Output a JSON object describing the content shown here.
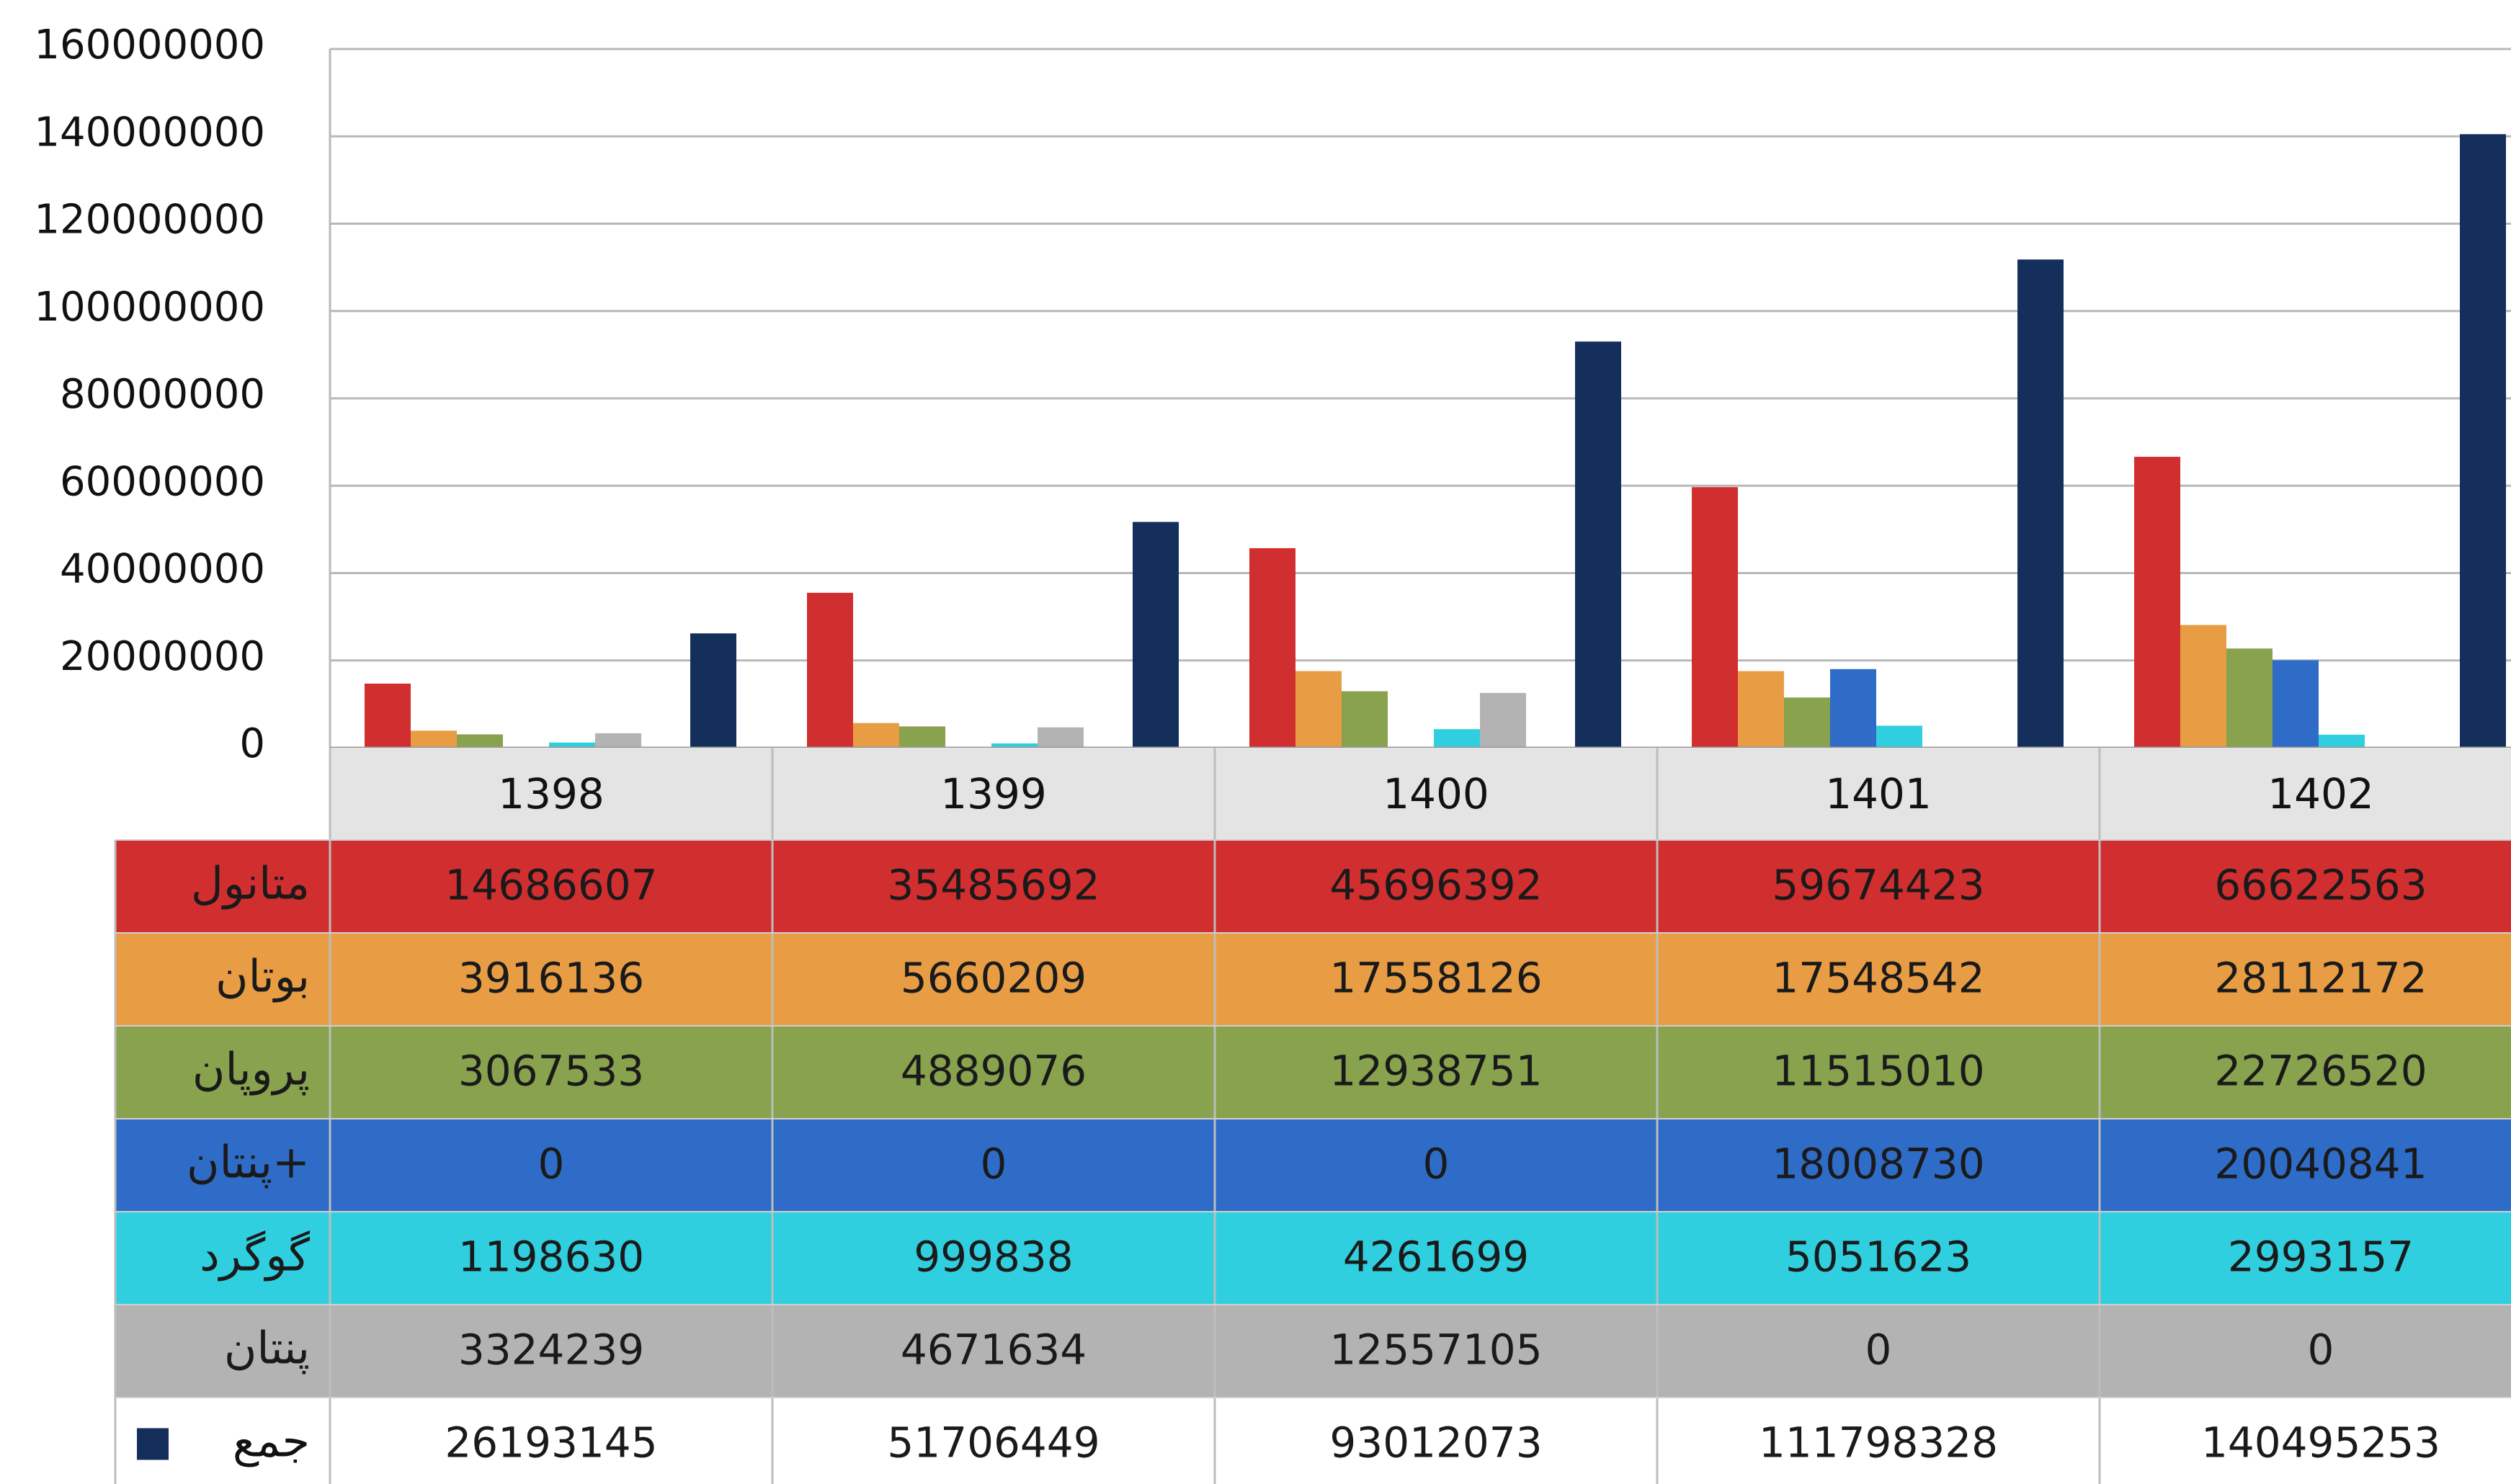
{
  "chart_data": {
    "type": "bar",
    "categories": [
      "1398",
      "1399",
      "1400",
      "1401",
      "1402"
    ],
    "ylim": [
      0,
      160000000
    ],
    "yticks": [
      0,
      20000000,
      40000000,
      60000000,
      80000000,
      100000000,
      120000000,
      140000000,
      160000000
    ],
    "ytick_labels": [
      "0",
      "20000000",
      "40000000",
      "60000000",
      "80000000",
      "100000000",
      "120000000",
      "140000000",
      "160000000"
    ],
    "grid": true,
    "legend": "data-table-below",
    "series": [
      {
        "name": "متانول",
        "color": "#d12e30",
        "values": [
          14686607,
          35485692,
          45696392,
          59674423,
          66622563
        ]
      },
      {
        "name": "بوتان",
        "color": "#e89d45",
        "values": [
          3916136,
          5660209,
          17558126,
          17548542,
          28112172
        ]
      },
      {
        "name": "پروپان",
        "color": "#88a24e",
        "values": [
          3067533,
          4889076,
          12938751,
          11515010,
          22726520
        ]
      },
      {
        "name": "پنتان+",
        "color": "#2e6cc7",
        "values": [
          0,
          0,
          0,
          18008730,
          20040841
        ]
      },
      {
        "name": "گوگرد",
        "color": "#30cfe0",
        "values": [
          1198630,
          999838,
          4261699,
          5051623,
          2993157
        ]
      },
      {
        "name": "پنتان",
        "color": "#b3b3b3",
        "values": [
          3324239,
          4671634,
          12557105,
          0,
          0
        ]
      },
      {
        "name": "جمع",
        "color": "#142f5c",
        "values": [
          26193145,
          51706449,
          93012073,
          111798328,
          140495253
        ]
      }
    ]
  }
}
